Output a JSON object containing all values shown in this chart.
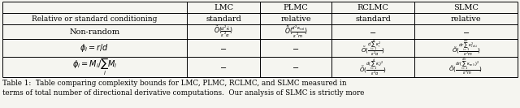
{
  "caption": "Table 1:  Table comparing complexity bounds for LMC, PLMC, RCLMC, and SLMC measured in\nterms of total number of directional derivative computations.  Our analysis of SLMC is strictly more",
  "bg_color": "#f5f5f0",
  "text_color": "#000000",
  "header1": [
    "LMC",
    "PLMC",
    "RCLMC",
    "SLMC"
  ],
  "header2": [
    "standard",
    "relative",
    "standard",
    "relative"
  ],
  "row_labels": [
    "Relative or standard conditioning",
    "Non-random",
    "$\\phi_i = r/d$",
    "$\\phi_i = M_i/\\sum_i M_i$"
  ],
  "row1_lmc": "$\\tilde{O}(\\frac{d^2\\tilde{\\kappa}}{\\epsilon^2\\alpha})$",
  "row1_plmc": "$\\tilde{O}(\\frac{d^2\\kappa_{\\mathrm{rel}}}{\\epsilon^2 m})$",
  "row2_rclmc": "$\\tilde{O}(\\frac{d\\sum_{i=1}^{d}\\kappa_i^2}{\\epsilon^2\\alpha})$",
  "row2_slmc": "$\\tilde{O}(\\frac{dr\\sum_{i=1}^{d/r}\\kappa_{\\mathrm{rel},i}^2}{\\epsilon^2 m})$",
  "row3_rclmc": "$\\tilde{O}(\\frac{d(\\sum_{i=1}^{d}\\tilde{\\kappa}_i)^2}{\\epsilon^2\\alpha})$",
  "row3_slmc": "$\\tilde{O}(\\frac{dr(\\sum_{i=1}^{d/r}\\kappa_{\\mathrm{rel},i})^2}{\\epsilon^2 m})$"
}
